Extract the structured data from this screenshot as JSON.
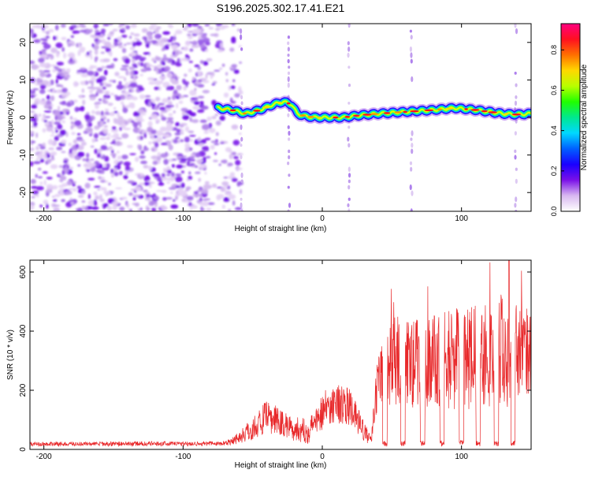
{
  "figure_title": "S196.2025.302.17.41.E21",
  "chart_data": [
    {
      "type": "heatmap",
      "title": "S196.2025.302.17.41.E21",
      "xlabel": "Height of straight line (km)",
      "ylabel": "Frequency (Hz)",
      "xlim": [
        -210,
        150
      ],
      "ylim": [
        -25,
        25
      ],
      "x_ticks": [
        "-200",
        "-100",
        "0",
        "100"
      ],
      "y_ticks": [
        "-20",
        "-10",
        "0",
        "10",
        "20"
      ],
      "colorbar": {
        "label": "Normalized spectral amplitude",
        "range": [
          0.0,
          0.93
        ],
        "ticks": [
          "0.0",
          "0.2",
          "0.4",
          "0.6",
          "0.8"
        ],
        "colormap": [
          "#ffffff",
          "#d8b8f0",
          "#7a10e8",
          "#1a00ff",
          "#0060ff",
          "#00d8ff",
          "#00e890",
          "#20ff00",
          "#b8ff00",
          "#ffd800",
          "#ff7000",
          "#ff1020",
          "#ff0080"
        ]
      },
      "noise_region": {
        "x": [
          -210,
          -68
        ],
        "amplitude": 0.12
      },
      "ridge": {
        "x": [
          -75,
          -65,
          -55,
          -45,
          -35,
          -28,
          -22,
          -18,
          -12,
          -5,
          5,
          15,
          25,
          40,
          60,
          80,
          95,
          110,
          120,
          130,
          140,
          150
        ],
        "freq": [
          2.5,
          2.0,
          1.0,
          2.0,
          3.5,
          4.2,
          3.5,
          1.0,
          0.3,
          0.0,
          0.0,
          0.0,
          0.5,
          1.0,
          1.5,
          2.0,
          2.5,
          2.0,
          1.5,
          1.0,
          0.8,
          1.0
        ]
      },
      "vertical_streaks_x": [
        -58,
        -24,
        19,
        64,
        139
      ]
    },
    {
      "type": "line",
      "xlabel": "Height of straight line (km)",
      "ylabel": "SNR (10 * v/v)",
      "xlim": [
        -210,
        150
      ],
      "ylim": [
        0,
        640
      ],
      "x_ticks": [
        "-200",
        "-100",
        "0",
        "100"
      ],
      "y_ticks": [
        "0",
        "200",
        "400",
        "600"
      ],
      "line_color": "#e8282a",
      "envelope": {
        "x": [
          -210,
          -70,
          -60,
          -50,
          -40,
          -30,
          -20,
          -10,
          0,
          10,
          20,
          30,
          35,
          40,
          50,
          60,
          80,
          100,
          120,
          130,
          140,
          150
        ],
        "level": [
          18,
          20,
          40,
          70,
          110,
          90,
          70,
          60,
          130,
          160,
          140,
          60,
          30,
          270,
          300,
          290,
          300,
          310,
          320,
          340,
          330,
          320
        ],
        "spread": [
          10,
          12,
          30,
          60,
          80,
          70,
          60,
          60,
          90,
          100,
          90,
          50,
          20,
          180,
          220,
          220,
          230,
          250,
          260,
          300,
          260,
          200
        ]
      },
      "dip_x": [
        45,
        58,
        72,
        86,
        100,
        112,
        125,
        137
      ],
      "peak": {
        "x": 134,
        "y": 640
      }
    }
  ]
}
